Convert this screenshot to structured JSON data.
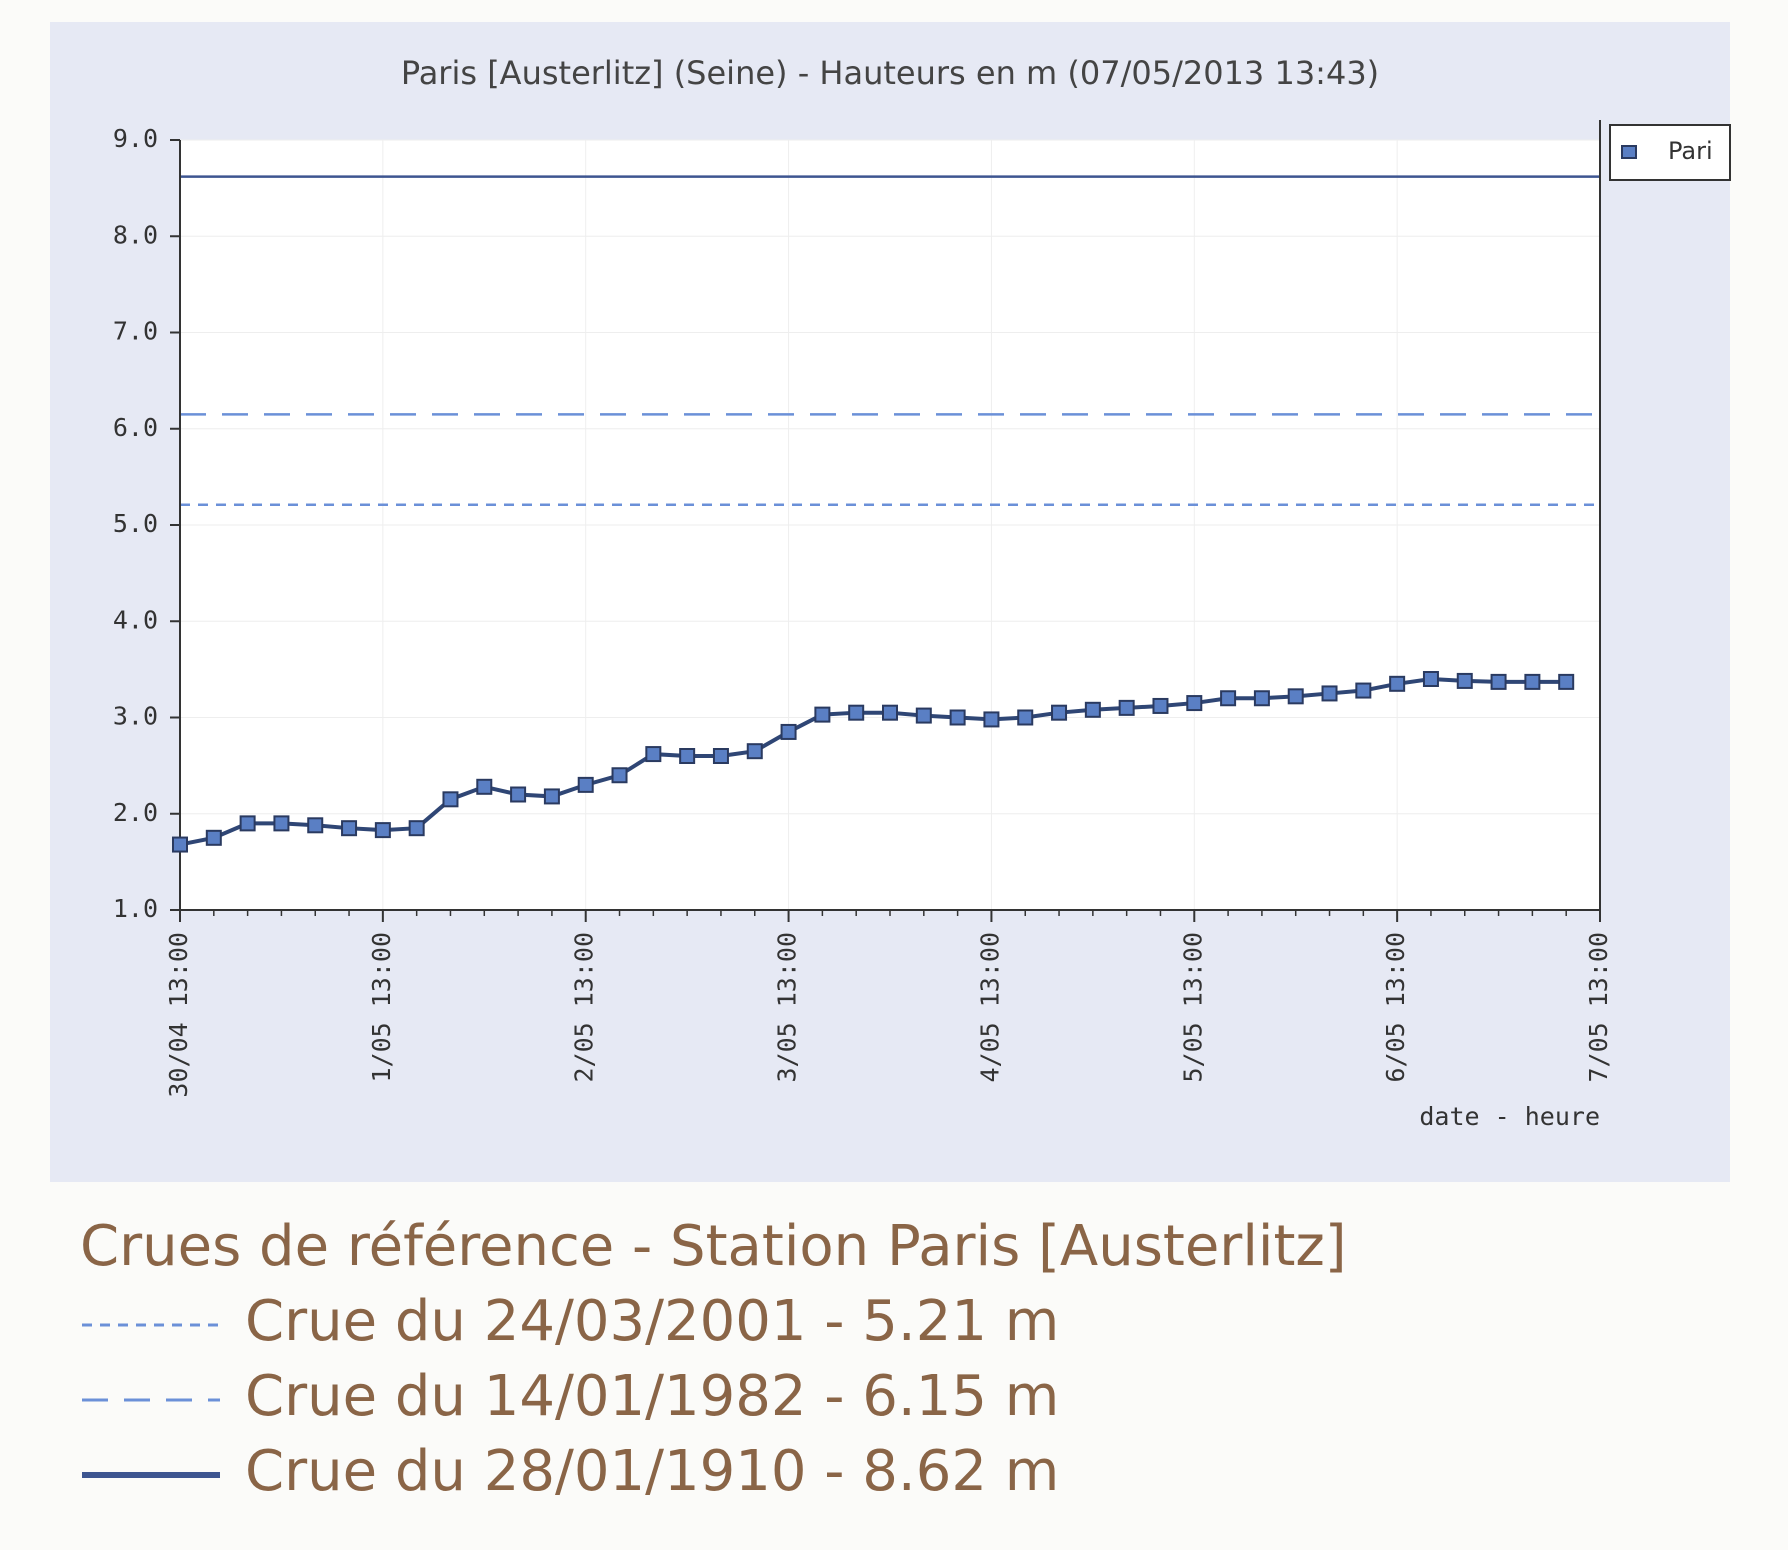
{
  "chart_data": {
    "type": "line",
    "title": "Paris [Austerlitz] (Seine) - Hauteurs en m (07/05/2013 13:43)",
    "x_label": "date - heure",
    "categories": [
      "30/04 13:00",
      null,
      null,
      null,
      null,
      null,
      "1/05 13:00",
      null,
      null,
      null,
      null,
      null,
      "2/05 13:00",
      null,
      null,
      null,
      null,
      null,
      "3/05 13:00",
      null,
      null,
      null,
      null,
      null,
      "4/05 13:00",
      null,
      null,
      null,
      null,
      null,
      "5/05 13:00",
      null,
      null,
      null,
      null,
      null,
      "6/05 13:00",
      null,
      null,
      null,
      null,
      null,
      "7/05 13:00"
    ],
    "series": [
      {
        "name": "Pari",
        "color": "#5a7fc4",
        "values": [
          1.68,
          1.75,
          1.9,
          1.9,
          1.88,
          1.85,
          1.83,
          1.85,
          2.15,
          2.28,
          2.2,
          2.18,
          2.3,
          2.4,
          2.62,
          2.6,
          2.6,
          2.65,
          2.85,
          3.03,
          3.05,
          3.05,
          3.02,
          3.0,
          2.98,
          3.0,
          3.05,
          3.08,
          3.1,
          3.12,
          3.15,
          3.2,
          3.2,
          3.22,
          3.25,
          3.28,
          3.35,
          3.4,
          3.38,
          3.37,
          3.37,
          3.37,
          null
        ]
      }
    ],
    "ylim": [
      1,
      9
    ],
    "yticks": [
      {
        "value": 1,
        "label": "1.0"
      },
      {
        "value": 2,
        "label": "2.0"
      },
      {
        "value": 3,
        "label": "3.0"
      },
      {
        "value": 4,
        "label": "4.0"
      },
      {
        "value": 5,
        "label": "5.0"
      },
      {
        "value": 6,
        "label": "6.0"
      },
      {
        "value": 7,
        "label": "7.0"
      },
      {
        "value": 8,
        "label": "8.0"
      },
      {
        "value": 9,
        "label": "9.0"
      }
    ],
    "grid": true,
    "legend": "top-right",
    "reference_title": "Crues de référence - Station Paris [Austerlitz]",
    "reference_lines": [
      {
        "name": "Crue du 24/03/2001 - 5.21 m",
        "value": 5.21,
        "style": "dotted",
        "color": "#6b90d8"
      },
      {
        "name": "Crue du 14/01/1982 - 6.15 m",
        "value": 6.15,
        "style": "dashed",
        "color": "#6b90d8"
      },
      {
        "name": "Crue du 28/01/1910 - 8.62 m",
        "value": 8.62,
        "style": "solid",
        "color": "#3d5590"
      }
    ]
  }
}
